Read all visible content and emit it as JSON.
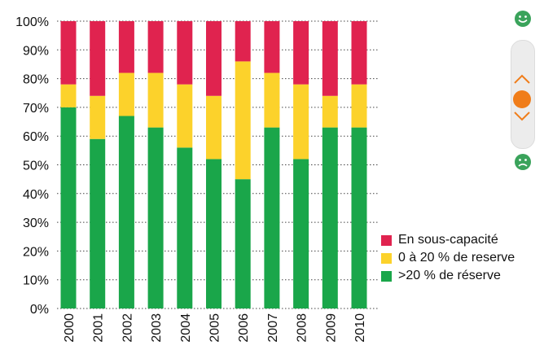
{
  "chart_data": {
    "type": "bar",
    "stacked": true,
    "categories": [
      "2000",
      "2001",
      "2002",
      "2003",
      "2004",
      "2005",
      "2006",
      "2007",
      "2008",
      "2009",
      "2010"
    ],
    "series": [
      {
        "name": ">20 % de réserve",
        "color": "#1aa64a",
        "values": [
          70,
          59,
          67,
          63,
          56,
          52,
          45,
          63,
          52,
          63,
          63
        ]
      },
      {
        "name": "0 à 20 % de reserve",
        "color": "#fcd22b",
        "values": [
          8,
          15,
          15,
          19,
          22,
          22,
          41,
          19,
          26,
          11,
          15
        ]
      },
      {
        "name": "En sous-capacité",
        "color": "#e0234f",
        "values": [
          22,
          26,
          18,
          18,
          22,
          26,
          14,
          18,
          22,
          26,
          22
        ]
      }
    ],
    "yticks": [
      "0%",
      "10%",
      "20%",
      "30%",
      "40%",
      "50%",
      "60%",
      "70%",
      "80%",
      "90%",
      "100%"
    ],
    "ylim": [
      0,
      100
    ],
    "grid": "horizontal dotted",
    "legend_position": "bottom-right"
  },
  "widget": {
    "happy_icon": "smiley-happy-icon",
    "sad_icon": "smiley-sad-icon",
    "up_icon": "chevron-up-icon",
    "down_icon": "chevron-down-icon",
    "accent": "#f07d1a",
    "face_color": "#3aa35b"
  }
}
